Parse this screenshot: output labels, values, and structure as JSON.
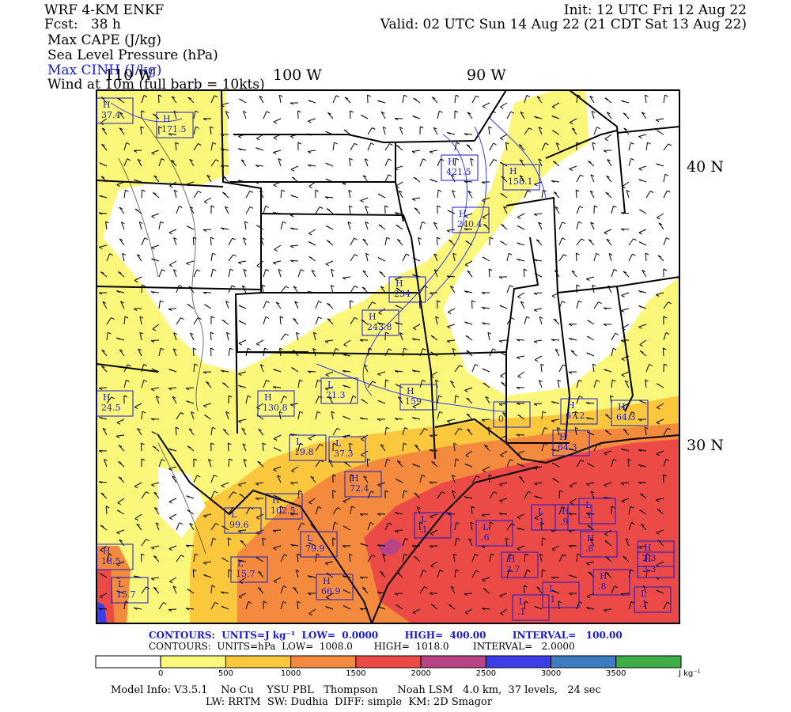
{
  "header": {
    "model": "WRF 4-KM ENKF",
    "fcst_label": "Fcst:",
    "fcst_value": "38 h",
    "init": "Init: 12 UTC Fri 12 Aug 22",
    "valid": "Valid: 02 UTC Sun 14 Aug 22 (21 CDT Sat 13 Aug 22)",
    "fields": [
      "Max CAPE (J/kg)",
      "Sea Level Pressure (hPa)",
      "Max CINH (J/kg)",
      "Wind at 10m (full barb = 10kts)"
    ]
  },
  "map": {
    "longitude_labels": [
      "110 W",
      "100 W",
      "90 W"
    ],
    "latitude_labels": [
      "40 N",
      "30 N"
    ],
    "pressure_centers": [
      {
        "type": "H",
        "value": "37.4"
      },
      {
        "type": "H",
        "value": "171.5"
      },
      {
        "type": "H",
        "value": "421.5"
      },
      {
        "type": "H",
        "value": "158.1"
      },
      {
        "type": "H",
        "value": "240.4"
      },
      {
        "type": "H",
        "value": "234"
      },
      {
        "type": "H",
        "value": "243.8"
      },
      {
        "type": "H",
        "value": "130.8"
      },
      {
        "type": "L",
        "value": "21.3"
      },
      {
        "type": "H",
        "value": "159"
      },
      {
        "type": "",
        "value": "0"
      },
      {
        "type": "H",
        "value": "67.2"
      },
      {
        "type": "H",
        "value": "64.3"
      },
      {
        "type": "H",
        "value": "64.3"
      },
      {
        "type": "L",
        "value": "19.8"
      },
      {
        "type": "L",
        "value": "37.3"
      },
      {
        "type": "H",
        "value": "72.4"
      },
      {
        "type": "H",
        "value": "102.5"
      },
      {
        "type": "L",
        "value": "99.6"
      },
      {
        "type": "L",
        "value": "79.9"
      },
      {
        "type": "L",
        "value": "15.7"
      },
      {
        "type": "H",
        "value": "66.9"
      },
      {
        "type": "H",
        "value": "18.5"
      },
      {
        "type": "L",
        "value": "15.7"
      },
      {
        "type": "H",
        "value": "2.3"
      },
      {
        "type": "H",
        "value": "24.5"
      },
      {
        "type": "L",
        "value": ".1"
      },
      {
        "type": "L",
        "value": ".6"
      },
      {
        "type": "L",
        "value": ".1"
      },
      {
        "type": "H",
        "value": ".9"
      },
      {
        "type": "L",
        "value": ".1"
      },
      {
        "type": "H",
        "value": ".8"
      },
      {
        "type": "H",
        "value": "2.3"
      },
      {
        "type": "H",
        "value": "2.7"
      },
      {
        "type": "L",
        "value": ".1"
      },
      {
        "type": "L",
        "value": ".1"
      },
      {
        "type": "H",
        "value": ".8"
      },
      {
        "type": "L",
        "value": ".1"
      }
    ]
  },
  "contours": {
    "line1": "CONTOURS:  UNITS=J kg⁻¹  LOW=  0.0000        HIGH=  400.00        INTERVAL=   100.00",
    "line2": "CONTOURS:  UNITS=hPa  LOW=  1008.0       HIGH=  1018.0        INTERVAL=   2.0000"
  },
  "colorbar": {
    "colors": [
      "#ffffff",
      "#fbf77a",
      "#fbc73d",
      "#f48a3d",
      "#ec4a46",
      "#b84487",
      "#3a3de8",
      "#3e7cc2",
      "#3fad46"
    ],
    "labels": [
      "0",
      "500",
      "1000",
      "1500",
      "2000",
      "2500",
      "3000",
      "3500"
    ],
    "unit": "J kg⁻¹"
  },
  "footer": {
    "line1": "Model Info: V3.5.1    No Cu    YSU PBL   Thompson      Noah LSM   4.0 km,  37 levels,   24 sec",
    "line2": "LW: RRTM  SW: Dudhia  DIFF: simple  KM: 2D Smagor"
  }
}
